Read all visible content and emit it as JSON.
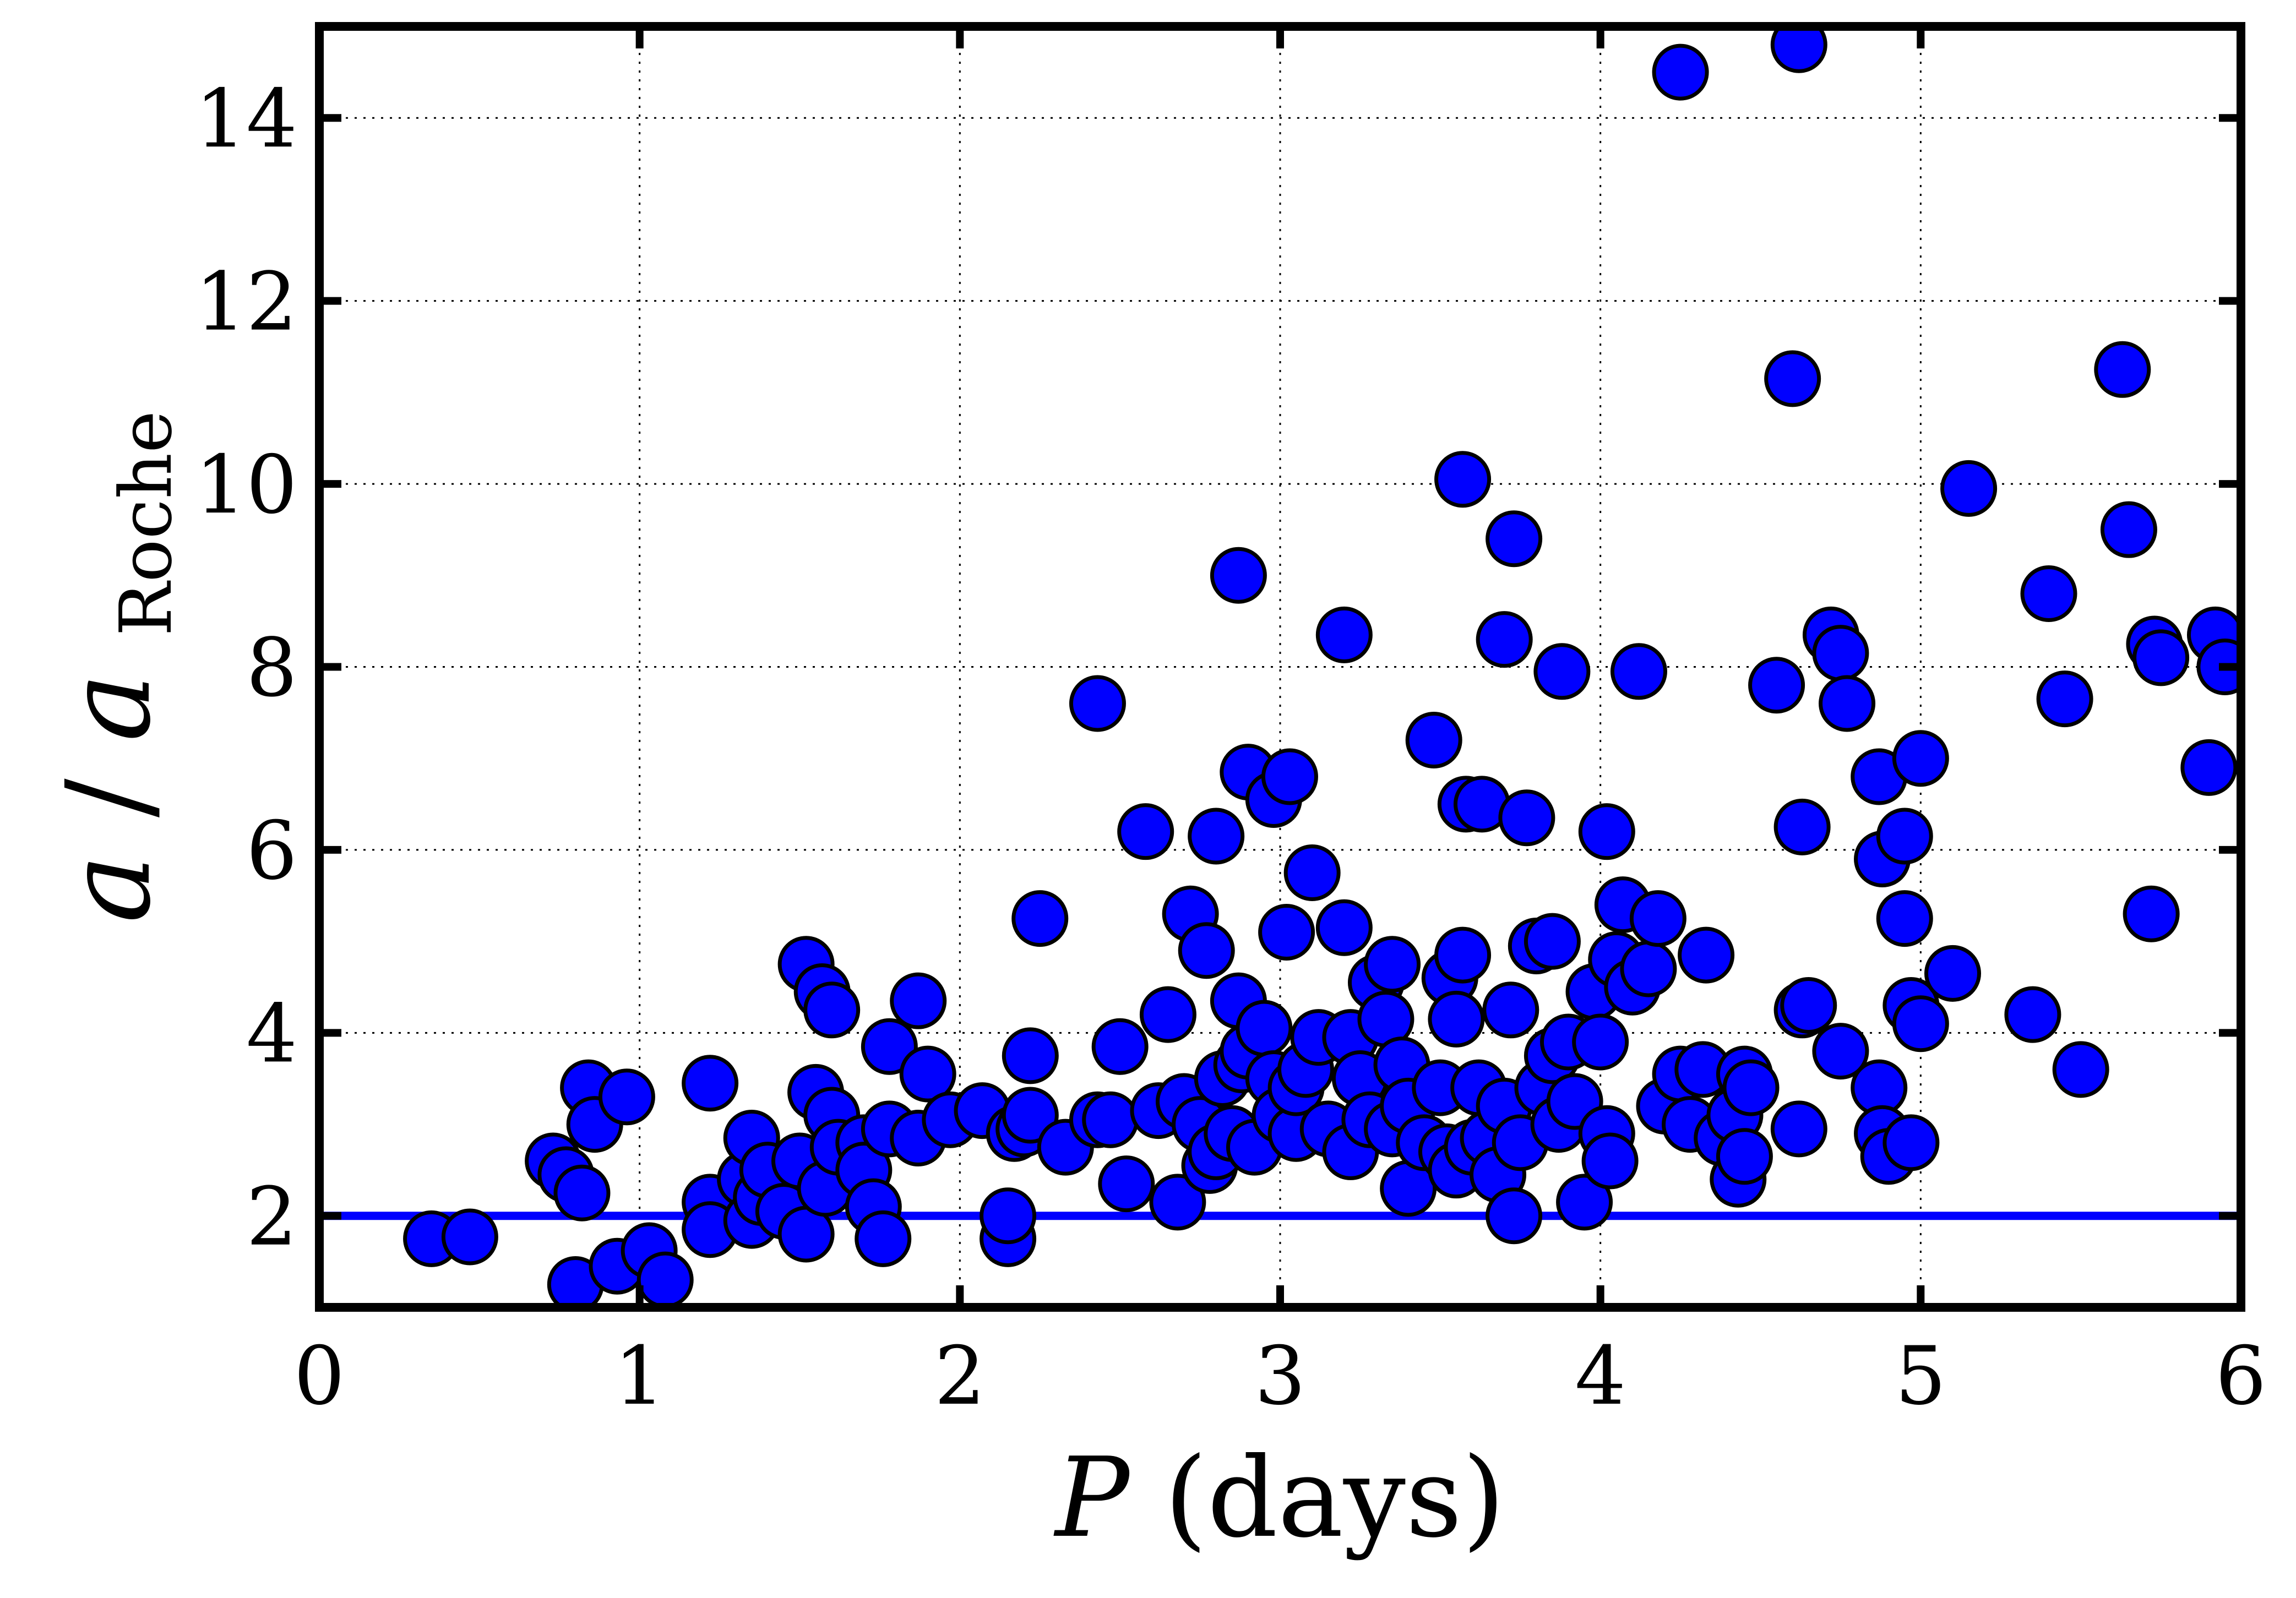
{
  "chart_data": {
    "type": "scatter",
    "xlabel": "P (days)",
    "ylabel": "a / a_Roche",
    "xlabel_parts": {
      "symbol": "P",
      "unit": "(days)"
    },
    "ylabel_parts": {
      "numerator": "a",
      "slash": "/",
      "denominator": "a",
      "subscript": "Roche"
    },
    "xlim": [
      0,
      6
    ],
    "ylim": [
      1,
      15
    ],
    "xticks": [
      "0",
      "1",
      "2",
      "3",
      "4",
      "5",
      "6"
    ],
    "yticks": [
      "2",
      "4",
      "6",
      "8",
      "10",
      "12",
      "14"
    ],
    "grid": true,
    "reference_line": {
      "y": 2,
      "color": "#0000ff"
    },
    "marker_color": "#0000ff",
    "edge_color": "#000000",
    "series": [
      {
        "points": [
          [
            0.35,
            1.75
          ],
          [
            0.47,
            1.77
          ],
          [
            0.73,
            2.6
          ],
          [
            0.77,
            2.45
          ],
          [
            0.8,
            1.25
          ],
          [
            0.82,
            2.25
          ],
          [
            0.84,
            3.4
          ],
          [
            0.86,
            3.0
          ],
          [
            0.93,
            1.45
          ],
          [
            0.96,
            3.3
          ],
          [
            1.03,
            1.62
          ],
          [
            1.08,
            1.3
          ],
          [
            1.22,
            2.15
          ],
          [
            1.22,
            1.85
          ],
          [
            1.22,
            3.45
          ],
          [
            1.33,
            2.4
          ],
          [
            1.35,
            2.85
          ],
          [
            1.35,
            1.95
          ],
          [
            1.38,
            2.2
          ],
          [
            1.4,
            2.5
          ],
          [
            1.45,
            2.05
          ],
          [
            1.5,
            2.6
          ],
          [
            1.52,
            1.8
          ],
          [
            1.52,
            4.75
          ],
          [
            1.55,
            3.35
          ],
          [
            1.57,
            4.45
          ],
          [
            1.6,
            4.25
          ],
          [
            1.6,
            3.1
          ],
          [
            1.58,
            2.3
          ],
          [
            1.62,
            2.75
          ],
          [
            1.7,
            2.8
          ],
          [
            1.7,
            2.5
          ],
          [
            1.73,
            2.1
          ],
          [
            1.76,
            1.75
          ],
          [
            1.78,
            2.95
          ],
          [
            1.78,
            3.85
          ],
          [
            1.87,
            2.85
          ],
          [
            1.87,
            4.35
          ],
          [
            1.9,
            3.55
          ],
          [
            1.97,
            3.05
          ],
          [
            2.07,
            3.15
          ],
          [
            2.15,
            1.75
          ],
          [
            2.15,
            2.0
          ],
          [
            2.17,
            2.9
          ],
          [
            2.2,
            2.95
          ],
          [
            2.22,
            3.1
          ],
          [
            2.22,
            3.75
          ],
          [
            2.25,
            5.25
          ],
          [
            2.33,
            2.75
          ],
          [
            2.43,
            7.6
          ],
          [
            2.43,
            3.05
          ],
          [
            2.47,
            3.05
          ],
          [
            2.5,
            3.85
          ],
          [
            2.52,
            2.35
          ],
          [
            2.58,
            6.2
          ],
          [
            2.62,
            3.15
          ],
          [
            2.65,
            4.2
          ],
          [
            2.68,
            2.15
          ],
          [
            2.7,
            3.25
          ],
          [
            2.72,
            5.3
          ],
          [
            2.75,
            3.0
          ],
          [
            2.77,
            4.9
          ],
          [
            2.78,
            2.55
          ],
          [
            2.8,
            6.15
          ],
          [
            2.8,
            2.7
          ],
          [
            2.82,
            3.5
          ],
          [
            2.85,
            2.9
          ],
          [
            2.87,
            4.35
          ],
          [
            2.87,
            9.0
          ],
          [
            2.88,
            3.65
          ],
          [
            2.9,
            3.8
          ],
          [
            2.9,
            6.85
          ],
          [
            2.92,
            2.75
          ],
          [
            2.95,
            4.05
          ],
          [
            2.98,
            3.5
          ],
          [
            2.98,
            6.55
          ],
          [
            3.0,
            3.1
          ],
          [
            3.02,
            5.1
          ],
          [
            3.03,
            6.8
          ],
          [
            3.05,
            2.9
          ],
          [
            3.05,
            3.4
          ],
          [
            3.08,
            3.6
          ],
          [
            3.1,
            5.75
          ],
          [
            3.12,
            3.95
          ],
          [
            3.15,
            2.95
          ],
          [
            3.2,
            8.35
          ],
          [
            3.2,
            5.15
          ],
          [
            3.22,
            3.95
          ],
          [
            3.22,
            2.7
          ],
          [
            3.25,
            3.5
          ],
          [
            3.28,
            3.05
          ],
          [
            3.3,
            4.55
          ],
          [
            3.33,
            4.15
          ],
          [
            3.35,
            4.75
          ],
          [
            3.35,
            2.95
          ],
          [
            3.38,
            3.65
          ],
          [
            3.4,
            3.2
          ],
          [
            3.4,
            2.3
          ],
          [
            3.45,
            2.8
          ],
          [
            3.48,
            7.2
          ],
          [
            3.5,
            3.4
          ],
          [
            3.52,
            2.7
          ],
          [
            3.53,
            4.6
          ],
          [
            3.55,
            2.5
          ],
          [
            3.55,
            4.15
          ],
          [
            3.57,
            10.05
          ],
          [
            3.57,
            4.85
          ],
          [
            3.58,
            6.5
          ],
          [
            3.6,
            2.75
          ],
          [
            3.62,
            3.4
          ],
          [
            3.63,
            6.5
          ],
          [
            3.65,
            2.85
          ],
          [
            3.68,
            2.45
          ],
          [
            3.7,
            8.3
          ],
          [
            3.7,
            3.2
          ],
          [
            3.72,
            4.25
          ],
          [
            3.73,
            9.4
          ],
          [
            3.73,
            2.0
          ],
          [
            3.75,
            2.8
          ],
          [
            3.77,
            6.35
          ],
          [
            3.8,
            4.95
          ],
          [
            3.82,
            3.4
          ],
          [
            3.85,
            3.75
          ],
          [
            3.85,
            5.0
          ],
          [
            3.87,
            3.0
          ],
          [
            3.88,
            7.95
          ],
          [
            3.9,
            3.9
          ],
          [
            3.92,
            3.25
          ],
          [
            3.95,
            2.15
          ],
          [
            3.98,
            4.45
          ],
          [
            4.0,
            3.9
          ],
          [
            4.02,
            2.9
          ],
          [
            4.02,
            6.2
          ],
          [
            4.03,
            2.6
          ],
          [
            4.05,
            4.8
          ],
          [
            4.07,
            5.4
          ],
          [
            4.1,
            4.5
          ],
          [
            4.12,
            7.95
          ],
          [
            4.15,
            4.7
          ],
          [
            4.18,
            5.25
          ],
          [
            4.2,
            3.2
          ],
          [
            4.25,
            3.55
          ],
          [
            4.25,
            14.5
          ],
          [
            4.28,
            3.0
          ],
          [
            4.32,
            3.6
          ],
          [
            4.33,
            4.85
          ],
          [
            4.38,
            2.85
          ],
          [
            4.42,
            3.1
          ],
          [
            4.43,
            2.4
          ],
          [
            4.45,
            2.65
          ],
          [
            4.45,
            3.55
          ],
          [
            4.47,
            3.4
          ],
          [
            4.55,
            7.8
          ],
          [
            4.6,
            11.15
          ],
          [
            4.62,
            14.8
          ],
          [
            4.62,
            2.95
          ],
          [
            4.63,
            4.25
          ],
          [
            4.63,
            6.25
          ],
          [
            4.65,
            4.3
          ],
          [
            4.72,
            8.35
          ],
          [
            4.75,
            8.15
          ],
          [
            4.77,
            7.6
          ],
          [
            4.75,
            3.8
          ],
          [
            4.87,
            3.4
          ],
          [
            4.87,
            6.8
          ],
          [
            4.88,
            2.9
          ],
          [
            4.88,
            5.9
          ],
          [
            4.9,
            2.65
          ],
          [
            4.95,
            5.25
          ],
          [
            4.95,
            6.15
          ],
          [
            4.97,
            2.8
          ],
          [
            4.97,
            4.3
          ],
          [
            5.0,
            7.0
          ],
          [
            5.0,
            4.1
          ],
          [
            5.1,
            4.65
          ],
          [
            5.15,
            9.95
          ],
          [
            5.35,
            4.2
          ],
          [
            5.4,
            8.8
          ],
          [
            5.45,
            7.65
          ],
          [
            5.5,
            3.6
          ],
          [
            5.63,
            11.25
          ],
          [
            5.65,
            9.5
          ],
          [
            5.72,
            5.3
          ],
          [
            5.73,
            8.25
          ],
          [
            5.75,
            8.1
          ],
          [
            5.9,
            6.9
          ],
          [
            5.92,
            8.35
          ],
          [
            5.95,
            8.0
          ]
        ]
      }
    ]
  }
}
